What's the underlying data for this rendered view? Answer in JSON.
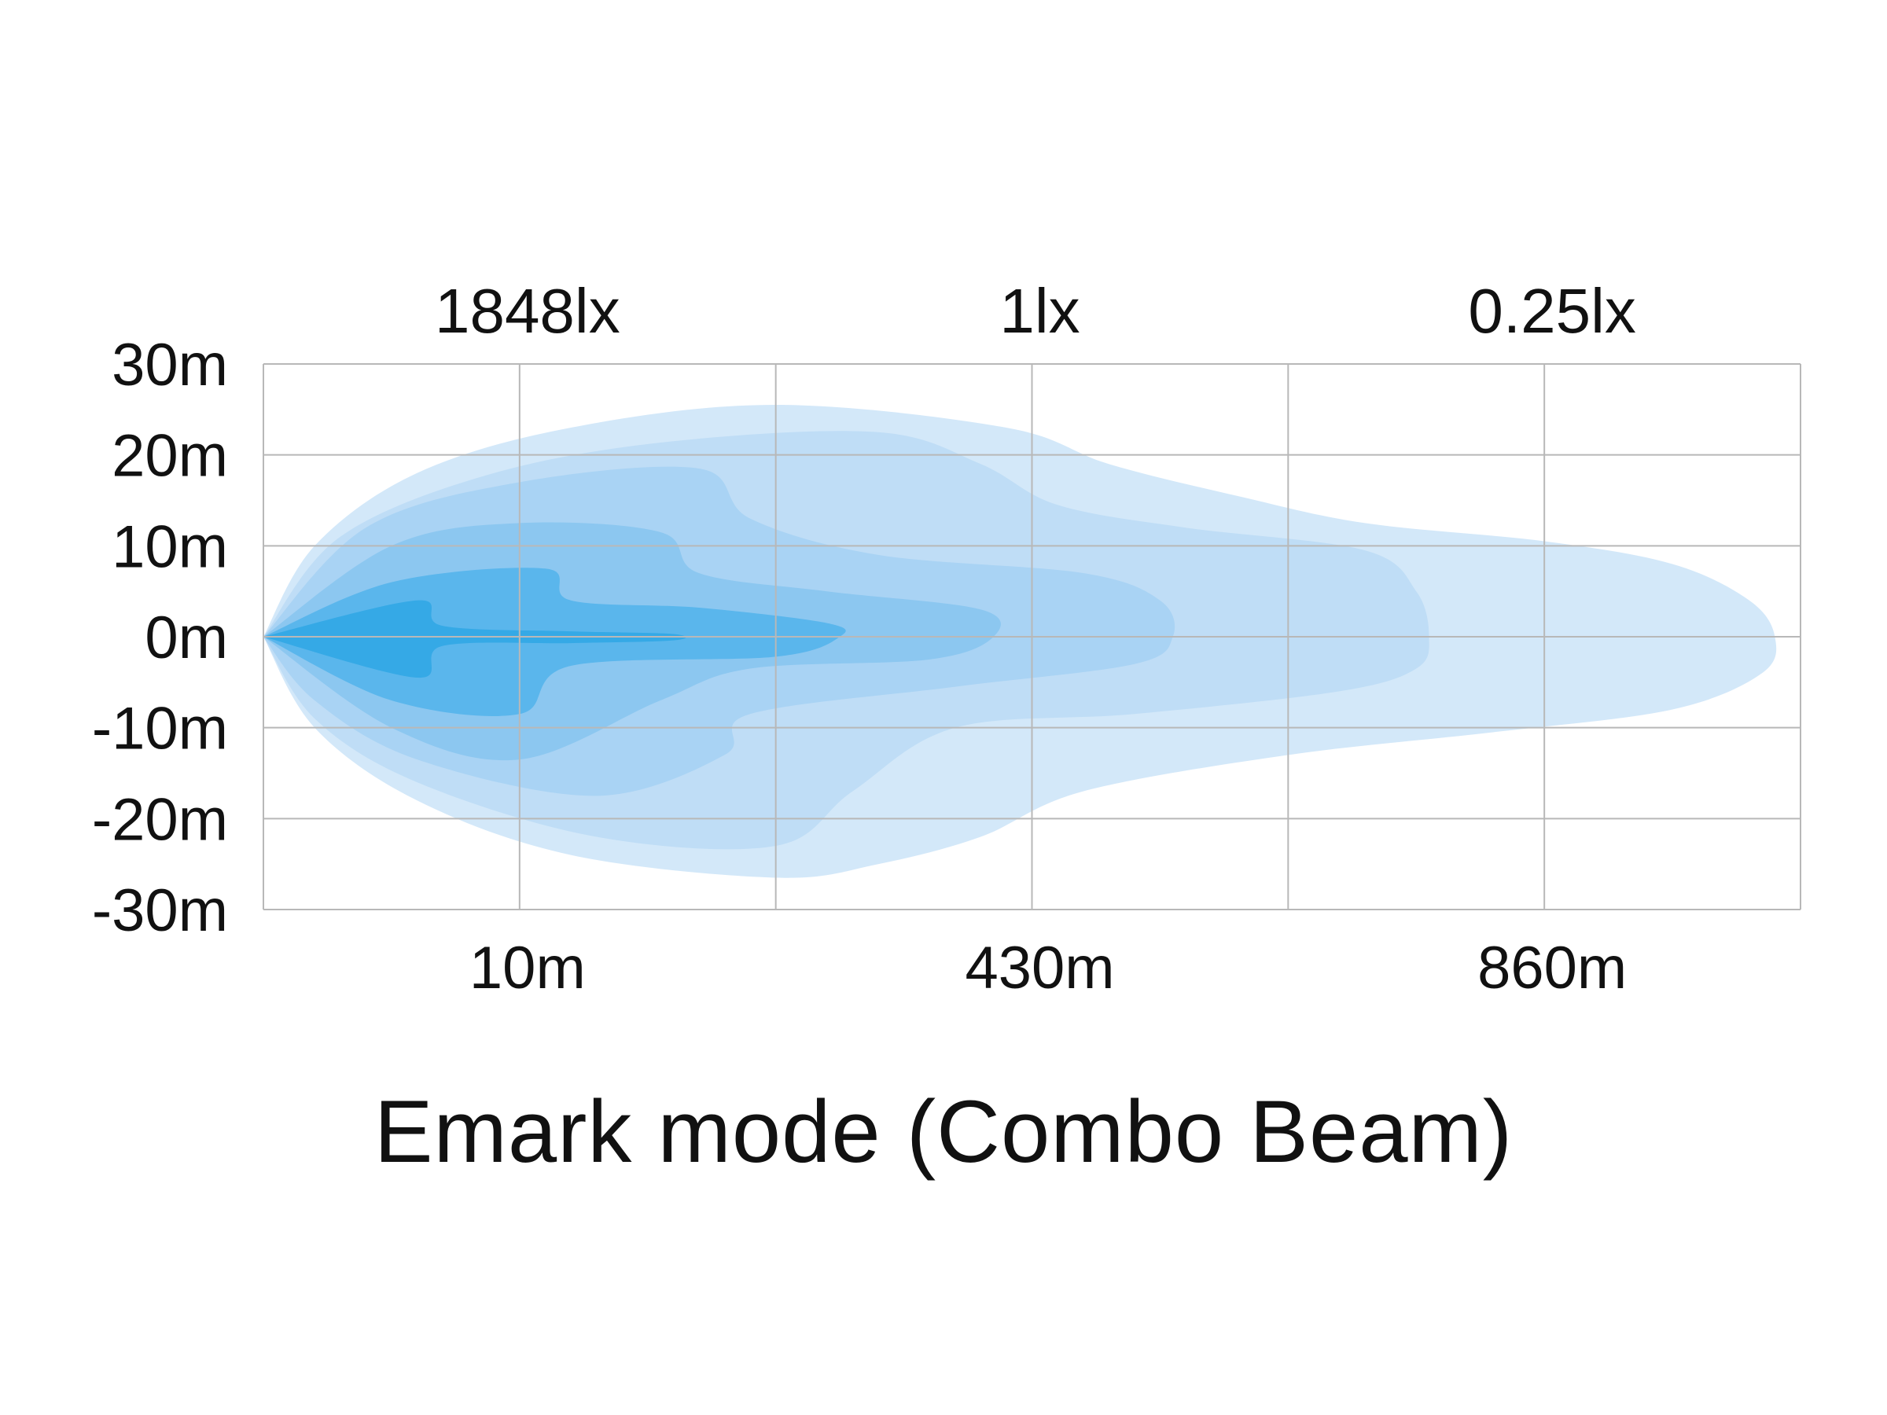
{
  "chart_data": {
    "type": "area",
    "title": "Emark mode (Combo Beam)",
    "top_labels": [
      {
        "text": "1848lx",
        "x_index": 1
      },
      {
        "text": "1lx",
        "x_index": 3
      },
      {
        "text": "0.25lx",
        "x_index": 5
      }
    ],
    "x_tick_labels": [
      {
        "text": "10m",
        "x_index": 1
      },
      {
        "text": "430m",
        "x_index": 3
      },
      {
        "text": "860m",
        "x_index": 5
      }
    ],
    "y_tick_labels": [
      "30m",
      "20m",
      "10m",
      "0m",
      "-10m",
      "-20m",
      "-30m"
    ],
    "ylim": [
      -30,
      30
    ],
    "x_divisions": 6,
    "grid": true,
    "colors": {
      "grid": "#b8b8b8",
      "zones": [
        "#d3e8f9",
        "#bfddf6",
        "#a9d3f4",
        "#8cc7f0",
        "#5ab6ec",
        "#35a9e6",
        "#1b93d3"
      ]
    },
    "zones": [
      {
        "level": 1,
        "top": [
          [
            0,
            0
          ],
          [
            0.2,
            10
          ],
          [
            0.6,
            18
          ],
          [
            1.2,
            23
          ],
          [
            2,
            25.5
          ],
          [
            2.9,
            23
          ],
          [
            3.3,
            19
          ],
          [
            3.8,
            15.5
          ],
          [
            4.3,
            12.5
          ],
          [
            5,
            10.5
          ],
          [
            5.5,
            8
          ],
          [
            5.8,
            4
          ],
          [
            5.9,
            0
          ],
          [
            5.85,
            -4
          ],
          [
            5.5,
            -8
          ],
          [
            4.8,
            -10.5
          ],
          [
            4,
            -13
          ],
          [
            3.2,
            -17
          ],
          [
            2.8,
            -22
          ],
          [
            2.4,
            -25
          ],
          [
            2,
            -26.5
          ],
          [
            1.2,
            -24
          ],
          [
            0.6,
            -18
          ],
          [
            0.2,
            -10
          ],
          [
            0,
            0
          ]
        ]
      },
      {
        "level": 2,
        "top": [
          [
            0,
            0
          ],
          [
            0.3,
            11
          ],
          [
            0.9,
            18
          ],
          [
            1.6,
            21.5
          ],
          [
            2.4,
            22.5
          ],
          [
            2.8,
            19
          ],
          [
            3.1,
            14.5
          ],
          [
            3.6,
            12
          ],
          [
            4.3,
            9.5
          ],
          [
            4.5,
            5
          ],
          [
            4.55,
            0
          ],
          [
            4.5,
            -3.5
          ],
          [
            4.2,
            -6
          ],
          [
            3.4,
            -8.5
          ],
          [
            2.7,
            -10
          ],
          [
            2.3,
            -17
          ],
          [
            2,
            -23
          ],
          [
            1.3,
            -22
          ],
          [
            0.6,
            -16
          ],
          [
            0.2,
            -9
          ],
          [
            0,
            0
          ]
        ]
      },
      {
        "level": 3,
        "top": [
          [
            0,
            0
          ],
          [
            0.4,
            12
          ],
          [
            1,
            17
          ],
          [
            1.7,
            18.5
          ],
          [
            1.9,
            13
          ],
          [
            2.4,
            9
          ],
          [
            3.2,
            7
          ],
          [
            3.5,
            4
          ],
          [
            3.55,
            0
          ],
          [
            3.4,
            -3
          ],
          [
            2.7,
            -5.5
          ],
          [
            1.9,
            -8.5
          ],
          [
            1.8,
            -13
          ],
          [
            1.3,
            -17.5
          ],
          [
            0.6,
            -13.5
          ],
          [
            0.2,
            -7
          ],
          [
            0,
            0
          ]
        ]
      },
      {
        "level": 4,
        "top": [
          [
            0,
            0
          ],
          [
            0.5,
            10
          ],
          [
            1,
            12.5
          ],
          [
            1.55,
            11.5
          ],
          [
            1.7,
            7
          ],
          [
            2.2,
            5
          ],
          [
            2.8,
            3
          ],
          [
            2.85,
            0
          ],
          [
            2.6,
            -2.5
          ],
          [
            1.9,
            -3.5
          ],
          [
            1.55,
            -7
          ],
          [
            1,
            -13.5
          ],
          [
            0.5,
            -10
          ],
          [
            0,
            0
          ]
        ]
      },
      {
        "level": 5,
        "top": [
          [
            0,
            0
          ],
          [
            0.5,
            6
          ],
          [
            1.1,
            7.5
          ],
          [
            1.2,
            4
          ],
          [
            1.7,
            3.2
          ],
          [
            2.2,
            1.5
          ],
          [
            2.25,
            0
          ],
          [
            2,
            -2.2
          ],
          [
            1.2,
            -3.2
          ],
          [
            1,
            -8.5
          ],
          [
            0.5,
            -7
          ],
          [
            0,
            0
          ]
        ]
      },
      {
        "level": 6,
        "top": [
          [
            0,
            0
          ],
          [
            0.6,
            4
          ],
          [
            0.7,
            1.2
          ],
          [
            1.2,
            0.6
          ],
          [
            1.6,
            0.3
          ],
          [
            1.6,
            -0.4
          ],
          [
            1.2,
            -0.7
          ],
          [
            0.7,
            -1
          ],
          [
            0.6,
            -4.5
          ],
          [
            0,
            0
          ]
        ]
      }
    ]
  }
}
